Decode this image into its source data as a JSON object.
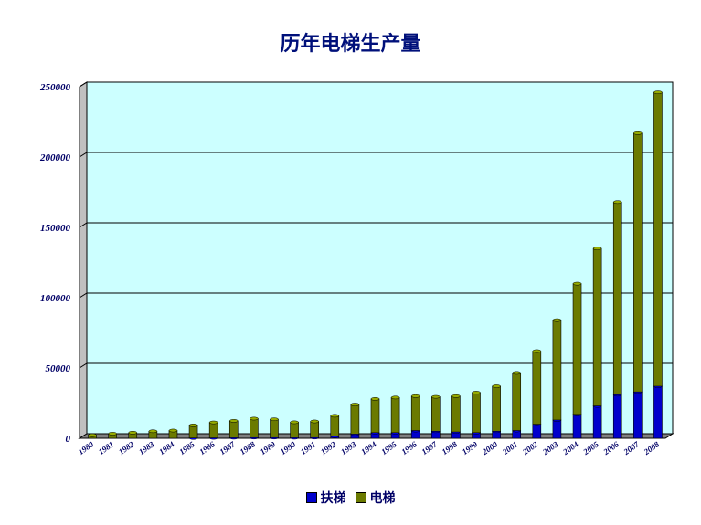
{
  "chart_data": {
    "type": "bar",
    "stacked": true,
    "title": "历年电梯生产量",
    "xlabel": "",
    "ylabel": "",
    "ylim": [
      0,
      250000
    ],
    "yticks": [
      0,
      50000,
      100000,
      150000,
      200000,
      250000
    ],
    "grid": true,
    "legend_position": "bottom",
    "categories": [
      "1980",
      "1981",
      "1982",
      "1983",
      "1984",
      "1985",
      "1986",
      "1987",
      "1988",
      "1989",
      "1990",
      "1991",
      "1992",
      "1993",
      "1994",
      "1995",
      "1996",
      "1997",
      "1998",
      "1999",
      "2000",
      "2001",
      "2002",
      "2003",
      "2004",
      "2005",
      "2006",
      "2007",
      "2008"
    ],
    "series": [
      {
        "name": "扶梯",
        "color": "#0000cc",
        "values": [
          0,
          0,
          0,
          0,
          0,
          200,
          300,
          400,
          500,
          500,
          400,
          500,
          1500,
          3000,
          4000,
          4000,
          5500,
          5000,
          4500,
          4000,
          5000,
          5500,
          10000,
          13000,
          17000,
          23000,
          31000,
          33000,
          37000
        ]
      },
      {
        "name": "电梯",
        "color": "#6b7a00",
        "values": [
          2200,
          3300,
          4000,
          5000,
          5500,
          9000,
          11000,
          12000,
          13500,
          13000,
          11000,
          11500,
          14500,
          21000,
          24000,
          25000,
          24500,
          24500,
          25500,
          28500,
          32000,
          41000,
          52000,
          71000,
          93000,
          112000,
          137000,
          184000,
          209000
        ]
      }
    ]
  }
}
